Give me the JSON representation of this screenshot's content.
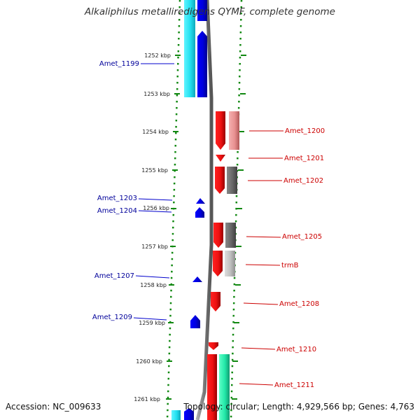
{
  "title": "Alkaliphilus metalliredigens QYMF, complete genome",
  "footer": {
    "accession": "Accession: NC_009633",
    "topology": "Topology: circular; Length: 4,929,566 bp; Genes: 4,763"
  },
  "colors": {
    "reverse_strand_gene": "#0000ee",
    "reverse_strand_label": "#00009a",
    "forward_strand_gene": "#ee1111",
    "forward_strand_label": "#cc0000",
    "cds_cyan": "#22e0f0",
    "cds_green": "#22e8a8",
    "cds_pink": "#e89090",
    "cds_dark_gray": "#666666",
    "cds_light_gray": "#c0c0c0",
    "backbone": "#888888",
    "ruler_ticks": "#118811",
    "scale_text": "#222222"
  },
  "scale_labels": [
    "1252 kbp",
    "1253 kbp",
    "1254 kbp",
    "1255 kbp",
    "1256 kbp",
    "1257 kbp",
    "1258 kbp",
    "1259 kbp",
    "1260 kbp",
    "1261 kbp"
  ],
  "gene_labels": [
    {
      "name": "Amet_1199",
      "strand": "reverse"
    },
    {
      "name": "Amet_1200",
      "strand": "forward"
    },
    {
      "name": "Amet_1201",
      "strand": "forward"
    },
    {
      "name": "Amet_1202",
      "strand": "forward"
    },
    {
      "name": "Amet_1203",
      "strand": "reverse"
    },
    {
      "name": "Amet_1204",
      "strand": "reverse"
    },
    {
      "name": "Amet_1205",
      "strand": "forward"
    },
    {
      "name": "trmB",
      "strand": "forward"
    },
    {
      "name": "Amet_1207",
      "strand": "reverse"
    },
    {
      "name": "Amet_1208",
      "strand": "forward"
    },
    {
      "name": "Amet_1209",
      "strand": "reverse"
    },
    {
      "name": "Amet_1210",
      "strand": "forward"
    },
    {
      "name": "Amet_1211",
      "strand": "forward"
    }
  ]
}
